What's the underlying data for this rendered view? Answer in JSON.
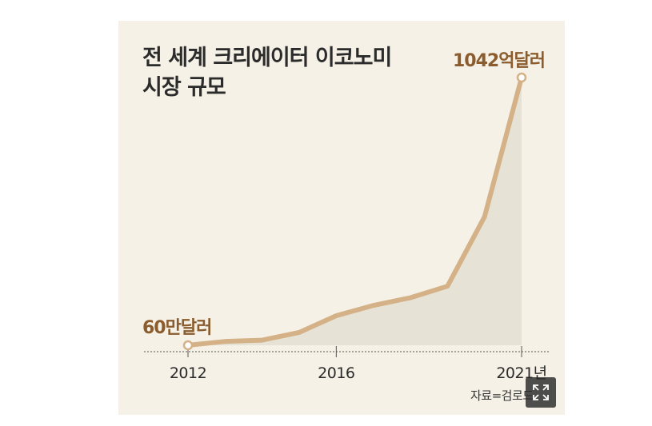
{
  "chart_data": {
    "type": "area",
    "title_lines": [
      "전 세계 크리에이터 이코노미",
      "시장 규모"
    ],
    "x": [
      2012,
      2013,
      2014,
      2015,
      2016,
      2017,
      2018,
      2019,
      2020,
      2021
    ],
    "values": [
      0.006,
      15,
      20,
      50,
      115,
      155,
      185,
      230,
      500,
      1042
    ],
    "x_ticks": [
      {
        "value": 2012,
        "label": "2012"
      },
      {
        "value": 2016,
        "label": "2016"
      },
      {
        "value": 2021,
        "label": "2021년"
      }
    ],
    "start_label": "60만달러",
    "end_label": "1042억달러",
    "source": "자료=검로드",
    "ylim": [
      0,
      1042
    ],
    "grid": false,
    "colors": {
      "line": "#d4b186",
      "fill": "#e6e3d6",
      "accent": "#8a5c2e",
      "card": "#f5f1e6"
    }
  },
  "ui": {
    "expand_icon": "expand-icon"
  }
}
